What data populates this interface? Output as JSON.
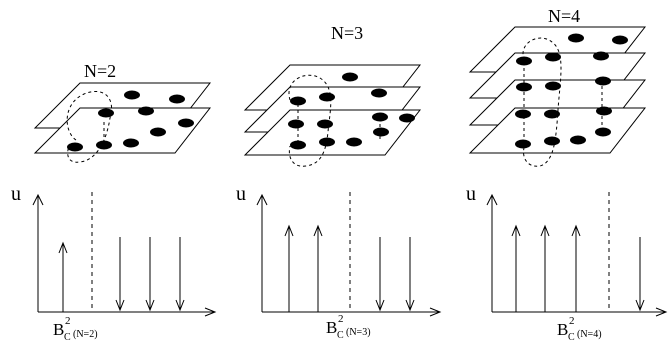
{
  "panels": [
    {
      "title": "N=2",
      "n_layers": 2,
      "axis_label": "u",
      "field_base": "B",
      "field_sup": "2",
      "field_sub": "C",
      "field_tag": "(N=2)",
      "arrows": [
        "up",
        "down",
        "down",
        "down"
      ]
    },
    {
      "title": "N=3",
      "n_layers": 3,
      "axis_label": "u",
      "field_base": "B",
      "field_sup": "2",
      "field_sub": "C",
      "field_tag": "(N=3)",
      "arrows": [
        "up",
        "up",
        "down",
        "down"
      ]
    },
    {
      "title": "N=4",
      "n_layers": 4,
      "axis_label": "u",
      "field_base": "B",
      "field_sup": "2",
      "field_sub": "C",
      "field_tag": "(N=4)",
      "arrows": [
        "up",
        "up",
        "up",
        "down"
      ]
    }
  ]
}
